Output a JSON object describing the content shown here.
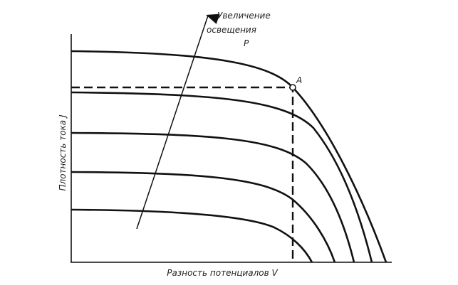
{
  "arrow_label": [
    "Увеличение",
    "освещения",
    "P"
  ],
  "point_label": "A",
  "y_axis_label": "Плотность тока J",
  "x_axis_label": "Разность потенциалов V"
}
